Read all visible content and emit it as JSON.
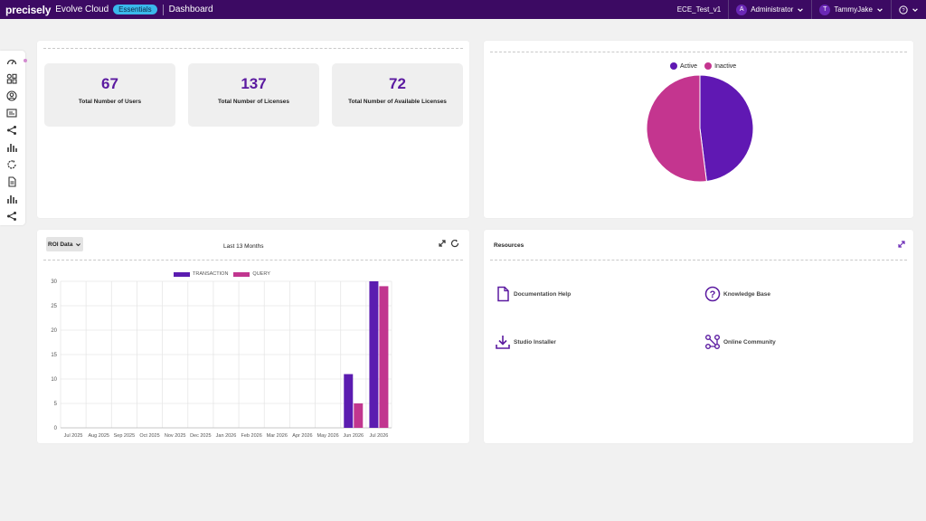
{
  "header": {
    "logo": "precisely",
    "product": "Evolve Cloud",
    "badge": "Essentials",
    "page": "Dashboard",
    "environment": "ECE_Test_v1",
    "role_avatar": "A",
    "role": "Administrator",
    "user_avatar": "T",
    "user": "TammyJake"
  },
  "sidebar": {
    "icons": [
      "gauge-icon",
      "apps-icon",
      "user-circle-icon",
      "id-card-icon",
      "share-icon",
      "bar-chart-icon",
      "sync-icon",
      "document-icon",
      "bar-chart-icon",
      "share-icon"
    ]
  },
  "stats": [
    {
      "value": "67",
      "label": "Total Number of Users"
    },
    {
      "value": "137",
      "label": "Total Number of Licenses"
    },
    {
      "value": "72",
      "label": "Total Number of Available Licenses"
    }
  ],
  "pie": {
    "legend": [
      {
        "label": "Active",
        "color": "#6018b3"
      },
      {
        "label": "Inactive",
        "color": "#c4358f"
      }
    ],
    "values": [
      48,
      52
    ]
  },
  "roi": {
    "select_value": "ROI Data",
    "title": "Last 13 Months"
  },
  "chart_data": {
    "type": "bar",
    "title": "",
    "categories": [
      "Jul 2025",
      "Aug 2025",
      "Sep 2025",
      "Oct 2025",
      "Nov 2025",
      "Dec 2025",
      "Jan 2026",
      "Feb 2026",
      "Mar 2026",
      "Apr 2026",
      "May 2026",
      "Jun 2026",
      "Jul 2026"
    ],
    "series": [
      {
        "name": "TRANSACTION",
        "color": "#5b1cb0",
        "values": [
          0,
          0,
          0,
          0,
          0,
          0,
          0,
          0,
          0,
          0,
          0,
          11,
          30
        ]
      },
      {
        "name": "QUERY",
        "color": "#c1368f",
        "values": [
          0,
          0,
          0,
          0,
          0,
          0,
          0,
          0,
          0,
          0,
          0,
          5,
          29
        ]
      }
    ],
    "ylim": [
      0,
      30
    ],
    "yticks": [
      0,
      5,
      10,
      15,
      20,
      25,
      30
    ],
    "grid": true,
    "legend_position": "top"
  },
  "resources": {
    "title": "Resources",
    "items": [
      {
        "label": "Documentation Help",
        "icon": "document-icon"
      },
      {
        "label": "Knowledge Base",
        "icon": "question-circle-icon"
      },
      {
        "label": "Studio Installer",
        "icon": "download-icon"
      },
      {
        "label": "Online Community",
        "icon": "community-icon"
      }
    ]
  }
}
